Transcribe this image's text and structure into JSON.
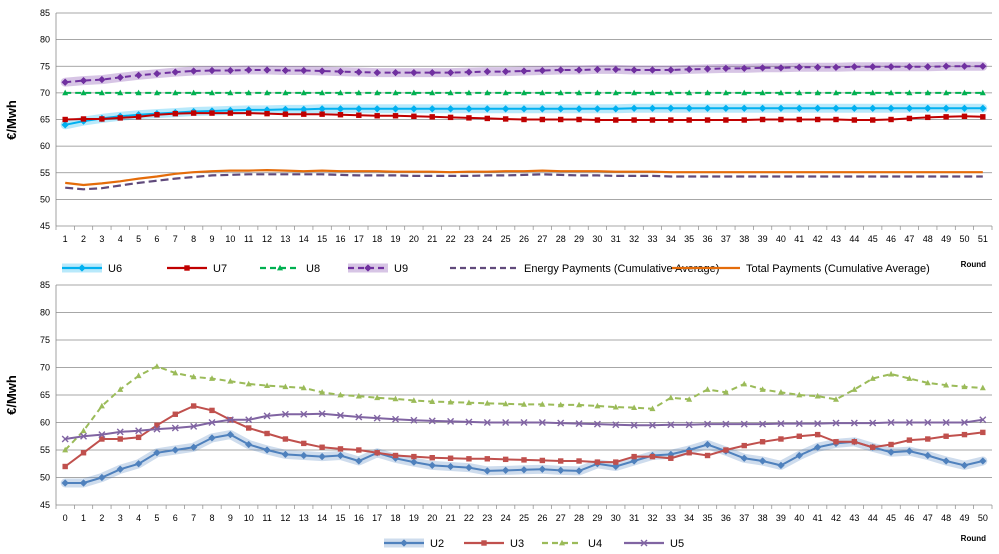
{
  "chart_data": [
    {
      "type": "line",
      "xlabel": "Round",
      "ylabel": "€/Mwh",
      "ylim": [
        45,
        85
      ],
      "y_ticks": [
        "45",
        "50",
        "55",
        "60",
        "65",
        "70",
        "75",
        "80",
        "85"
      ],
      "grid": "horizontal",
      "legend_position": "bottom",
      "x": [
        "1",
        "2",
        "3",
        "4",
        "5",
        "6",
        "7",
        "8",
        "9",
        "10",
        "11",
        "12",
        "13",
        "14",
        "15",
        "16",
        "17",
        "18",
        "19",
        "20",
        "21",
        "22",
        "23",
        "24",
        "25",
        "26",
        "27",
        "28",
        "29",
        "30",
        "31",
        "32",
        "33",
        "34",
        "35",
        "36",
        "37",
        "38",
        "39",
        "40",
        "41",
        "42",
        "43",
        "44",
        "45",
        "46",
        "47",
        "48",
        "49",
        "50",
        "51"
      ],
      "series": [
        {
          "name": "U6",
          "color": "#00b0f0",
          "marker": "diamond",
          "dash": false,
          "band": true,
          "values": [
            64.0,
            64.7,
            65.2,
            65.6,
            65.9,
            66.1,
            66.3,
            66.5,
            66.6,
            66.7,
            66.8,
            66.8,
            66.9,
            66.9,
            67.0,
            67.0,
            67.0,
            67.0,
            67.0,
            67.0,
            67.0,
            67.0,
            67.0,
            67.0,
            67.0,
            67.0,
            67.0,
            67.0,
            67.0,
            67.0,
            67.0,
            67.1,
            67.1,
            67.1,
            67.1,
            67.1,
            67.1,
            67.1,
            67.1,
            67.1,
            67.1,
            67.1,
            67.1,
            67.1,
            67.1,
            67.1,
            67.1,
            67.1,
            67.1,
            67.1,
            67.1
          ]
        },
        {
          "name": "U7",
          "color": "#c00000",
          "marker": "square",
          "dash": false,
          "band": false,
          "values": [
            65.0,
            65.1,
            65.1,
            65.3,
            65.5,
            65.9,
            66.1,
            66.2,
            66.2,
            66.2,
            66.2,
            66.1,
            66.0,
            66.0,
            66.0,
            65.9,
            65.8,
            65.7,
            65.7,
            65.6,
            65.5,
            65.4,
            65.3,
            65.2,
            65.1,
            65.0,
            65.0,
            65.0,
            65.0,
            64.9,
            64.9,
            64.9,
            64.9,
            64.9,
            64.9,
            64.9,
            64.9,
            64.9,
            65.0,
            65.0,
            65.0,
            65.0,
            65.0,
            64.9,
            64.9,
            65.0,
            65.2,
            65.4,
            65.5,
            65.6,
            65.5
          ]
        },
        {
          "name": "U8",
          "color": "#00b050",
          "marker": "triangle",
          "dash": true,
          "band": false,
          "values": [
            70,
            70,
            70,
            70,
            70,
            70,
            70,
            70,
            70,
            70,
            70,
            70,
            70,
            70,
            70,
            70,
            70,
            70,
            70,
            70,
            70,
            70,
            70,
            70,
            70,
            70,
            70,
            70,
            70,
            70,
            70,
            70,
            70,
            70,
            70,
            70,
            70,
            70,
            70,
            70,
            70,
            70,
            70,
            70,
            70,
            70,
            70,
            70,
            70,
            70,
            70
          ]
        },
        {
          "name": "U9",
          "color": "#7030a0",
          "marker": "diamond",
          "dash": true,
          "band": true,
          "values": [
            72.0,
            72.3,
            72.5,
            72.9,
            73.3,
            73.6,
            73.9,
            74.1,
            74.2,
            74.2,
            74.3,
            74.3,
            74.2,
            74.2,
            74.1,
            74.0,
            73.9,
            73.8,
            73.8,
            73.8,
            73.8,
            73.8,
            73.9,
            74.0,
            74.0,
            74.1,
            74.2,
            74.3,
            74.3,
            74.4,
            74.4,
            74.3,
            74.3,
            74.3,
            74.4,
            74.5,
            74.6,
            74.6,
            74.7,
            74.7,
            74.8,
            74.8,
            74.8,
            74.9,
            74.9,
            74.9,
            74.9,
            74.9,
            75.0,
            75.0,
            75.0
          ]
        },
        {
          "name": "Energy Payments (Cumulative Average)",
          "color": "#604a7b",
          "marker": "none",
          "dash": true,
          "band": false,
          "values": [
            52.2,
            51.9,
            52.1,
            52.6,
            53.1,
            53.5,
            53.9,
            54.2,
            54.5,
            54.6,
            54.7,
            54.7,
            54.7,
            54.7,
            54.7,
            54.6,
            54.5,
            54.5,
            54.5,
            54.4,
            54.4,
            54.4,
            54.4,
            54.5,
            54.5,
            54.6,
            54.7,
            54.6,
            54.5,
            54.5,
            54.4,
            54.4,
            54.4,
            54.3,
            54.3,
            54.3,
            54.3,
            54.3,
            54.3,
            54.3,
            54.3,
            54.3,
            54.3,
            54.3,
            54.3,
            54.3,
            54.3,
            54.3,
            54.3,
            54.3,
            54.3
          ]
        },
        {
          "name": "Total Payments (Cumulative Average)",
          "color": "#e46c0a",
          "marker": "none",
          "dash": false,
          "band": false,
          "values": [
            53.1,
            52.7,
            53.0,
            53.4,
            53.9,
            54.3,
            54.8,
            55.1,
            55.3,
            55.4,
            55.4,
            55.5,
            55.4,
            55.3,
            55.4,
            55.3,
            55.3,
            55.3,
            55.2,
            55.2,
            55.2,
            55.1,
            55.2,
            55.2,
            55.3,
            55.3,
            55.4,
            55.3,
            55.3,
            55.3,
            55.2,
            55.2,
            55.2,
            55.1,
            55.1,
            55.1,
            55.1,
            55.1,
            55.1,
            55.1,
            55.1,
            55.1,
            55.1,
            55.1,
            55.1,
            55.1,
            55.1,
            55.1,
            55.1,
            55.1,
            55.1
          ]
        }
      ]
    },
    {
      "type": "line",
      "xlabel": "Round",
      "ylabel": "€/Mwh",
      "ylim": [
        45,
        85
      ],
      "y_ticks": [
        "45",
        "50",
        "55",
        "60",
        "65",
        "70",
        "75",
        "80",
        "85"
      ],
      "grid": "horizontal",
      "legend_position": "bottom",
      "x": [
        "0",
        "1",
        "2",
        "3",
        "4",
        "5",
        "6",
        "7",
        "8",
        "9",
        "10",
        "11",
        "12",
        "13",
        "14",
        "15",
        "16",
        "17",
        "18",
        "19",
        "20",
        "21",
        "22",
        "23",
        "24",
        "25",
        "26",
        "27",
        "28",
        "29",
        "30",
        "31",
        "32",
        "33",
        "34",
        "35",
        "36",
        "37",
        "38",
        "39",
        "40",
        "41",
        "42",
        "43",
        "44",
        "45",
        "46",
        "47",
        "48",
        "49",
        "50"
      ],
      "series": [
        {
          "name": "U2",
          "color": "#4f81bd",
          "marker": "diamond",
          "dash": false,
          "band": true,
          "values": [
            49.0,
            49.0,
            50.0,
            51.5,
            52.5,
            54.5,
            55.0,
            55.5,
            57.2,
            57.8,
            56.0,
            55.0,
            54.2,
            54.0,
            53.8,
            54.0,
            53.0,
            54.5,
            53.5,
            52.8,
            52.2,
            52.0,
            51.8,
            51.2,
            51.3,
            51.4,
            51.5,
            51.3,
            51.2,
            52.5,
            52.0,
            53.0,
            54.0,
            54.2,
            55.0,
            56.0,
            54.8,
            53.5,
            53.0,
            52.2,
            54.0,
            55.5,
            56.2,
            56.5,
            55.5,
            54.6,
            54.8,
            54.0,
            53.0,
            52.2,
            53.0
          ]
        },
        {
          "name": "U3",
          "color": "#c0504d",
          "marker": "square",
          "dash": false,
          "band": false,
          "values": [
            52.0,
            54.5,
            57.0,
            57.0,
            57.3,
            59.5,
            61.5,
            63.0,
            62.2,
            60.5,
            59.0,
            58.0,
            57.0,
            56.2,
            55.5,
            55.2,
            55.0,
            54.5,
            54.0,
            53.8,
            53.6,
            53.5,
            53.4,
            53.4,
            53.3,
            53.2,
            53.1,
            53.0,
            53.0,
            52.8,
            52.8,
            53.8,
            53.8,
            53.5,
            54.5,
            54.0,
            55.0,
            55.8,
            56.5,
            57.0,
            57.5,
            57.8,
            56.5,
            56.5,
            55.5,
            56.0,
            56.8,
            57.0,
            57.5,
            57.8,
            58.2
          ]
        },
        {
          "name": "U4",
          "color": "#9bbb59",
          "marker": "triangle",
          "dash": true,
          "band": false,
          "values": [
            55.0,
            58.5,
            63.0,
            66.0,
            68.5,
            70.2,
            69.0,
            68.3,
            68.0,
            67.5,
            67.0,
            66.7,
            66.5,
            66.3,
            65.5,
            65.0,
            64.8,
            64.5,
            64.3,
            64.0,
            63.8,
            63.7,
            63.6,
            63.5,
            63.4,
            63.3,
            63.3,
            63.2,
            63.2,
            63.0,
            62.8,
            62.7,
            62.5,
            64.5,
            64.2,
            66.0,
            65.5,
            67.0,
            66.0,
            65.5,
            65.0,
            64.8,
            64.2,
            66.0,
            68.0,
            68.8,
            68.0,
            67.2,
            66.8,
            66.5,
            66.3
          ]
        },
        {
          "name": "U5",
          "color": "#8064a2",
          "marker": "x",
          "dash": false,
          "band": false,
          "values": [
            57.0,
            57.5,
            57.8,
            58.3,
            58.5,
            58.8,
            59.0,
            59.3,
            60.0,
            60.5,
            60.5,
            61.2,
            61.5,
            61.5,
            61.6,
            61.3,
            61.0,
            60.8,
            60.6,
            60.4,
            60.3,
            60.2,
            60.1,
            60.0,
            60.0,
            60.0,
            60.0,
            59.9,
            59.8,
            59.7,
            59.6,
            59.5,
            59.5,
            59.6,
            59.6,
            59.7,
            59.7,
            59.7,
            59.7,
            59.8,
            59.8,
            59.8,
            59.9,
            59.9,
            59.9,
            60.0,
            60.0,
            60.0,
            60.0,
            60.0,
            60.5
          ]
        }
      ]
    }
  ]
}
